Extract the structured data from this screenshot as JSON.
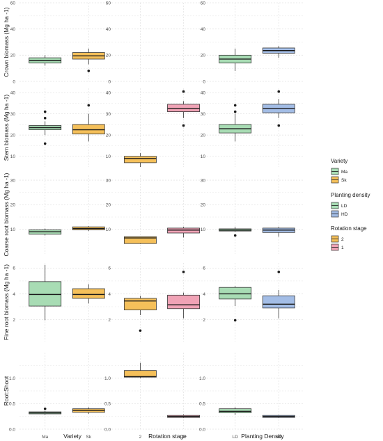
{
  "chart_data": {
    "type": "boxplot",
    "colors": {
      "Ma": "#a8dcb4",
      "Sk": "#f5c05a",
      "LD": "#a8dcb4",
      "HD": "#a3bde6",
      "2": "#f5c05a",
      "1": "#f0a3b6",
      "grid": "#e4e4e4",
      "median": "#1a1a1a"
    },
    "columns": [
      {
        "xlabel": "Variety",
        "categories": [
          "Ma",
          "Sk"
        ]
      },
      {
        "xlabel": "Rotation stage",
        "categories": [
          "2",
          "1"
        ]
      },
      {
        "xlabel": "Planting Density",
        "categories": [
          "LD",
          "HD"
        ]
      }
    ],
    "rows": [
      {
        "ylabel": "Crown biomass (Mg ha -1)",
        "ylim": [
          0,
          60
        ],
        "yticks": [
          0,
          20,
          40,
          60
        ],
        "tick_labels": [
          "0",
          "20",
          "40",
          "60"
        ]
      },
      {
        "ylabel": "Stem biomass (Mg ha -1)",
        "ylim": [
          5,
          42
        ],
        "yticks": [
          10,
          20,
          30,
          40
        ],
        "tick_labels": [
          "10",
          "20",
          "30",
          "40"
        ]
      },
      {
        "ylabel": "Coarse root biomass (Mg ha -1)",
        "ylim": [
          0,
          32
        ],
        "yticks": [
          10,
          20,
          30
        ],
        "tick_labels": [
          "10",
          "20",
          "30"
        ]
      },
      {
        "ylabel": "Fine root biomass (Mg ha -1)",
        "ylim": [
          0.3,
          6.4
        ],
        "yticks": [
          2,
          4,
          6
        ],
        "tick_labels": [
          "2",
          "4",
          "6"
        ]
      },
      {
        "ylabel": "Root:Shoot",
        "ylim": [
          0,
          1.5
        ],
        "yticks": [
          0,
          0.5,
          1.0
        ],
        "tick_labels": [
          "0.0",
          "0.5",
          "1.0"
        ]
      }
    ],
    "panels": [
      {
        "row": 0,
        "col": 0,
        "boxes": [
          {
            "cat": "Ma",
            "whisker_low": 12,
            "q1": 14,
            "median": 16,
            "q3": 18,
            "whisker_high": 20,
            "outliers": []
          },
          {
            "cat": "Sk",
            "whisker_low": 13,
            "q1": 17,
            "median": 19.5,
            "q3": 22,
            "whisker_high": 25,
            "outliers": [
              8
            ]
          }
        ]
      },
      {
        "row": 0,
        "col": 1,
        "boxes": []
      },
      {
        "row": 0,
        "col": 2,
        "boxes": [
          {
            "cat": "LD",
            "whisker_low": 8,
            "q1": 14,
            "median": 17,
            "q3": 20,
            "whisker_high": 25,
            "outliers": []
          },
          {
            "cat": "HD",
            "whisker_low": 18,
            "q1": 21.5,
            "median": 23.5,
            "q3": 25.5,
            "whisker_high": 27,
            "outliers": []
          }
        ]
      },
      {
        "row": 1,
        "col": 0,
        "boxes": [
          {
            "cat": "Ma",
            "whisker_low": 20,
            "q1": 22.5,
            "median": 23.5,
            "q3": 24.5,
            "whisker_high": 26.5,
            "outliers": [
              31,
              28,
              16
            ]
          },
          {
            "cat": "Sk",
            "whisker_low": 17,
            "q1": 20.5,
            "median": 22.5,
            "q3": 25,
            "whisker_high": 30,
            "outliers": [
              34
            ]
          }
        ]
      },
      {
        "row": 1,
        "col": 1,
        "boxes": [
          {
            "cat": "2",
            "whisker_low": 5,
            "q1": 7,
            "median": 9,
            "q3": 10,
            "whisker_high": 11.5,
            "outliers": []
          },
          {
            "cat": "1",
            "whisker_low": 28,
            "q1": 31,
            "median": 32.5,
            "q3": 34.5,
            "whisker_high": 36,
            "outliers": [
              40.5,
              24.5
            ]
          }
        ]
      },
      {
        "row": 1,
        "col": 2,
        "boxes": [
          {
            "cat": "LD",
            "whisker_low": 17,
            "q1": 21,
            "median": 23,
            "q3": 25,
            "whisker_high": 30,
            "outliers": [
              34,
              31
            ]
          },
          {
            "cat": "HD",
            "whisker_low": 28,
            "q1": 30.5,
            "median": 32.5,
            "q3": 34.5,
            "whisker_high": 37,
            "outliers": [
              40.5,
              24.5
            ]
          }
        ]
      },
      {
        "row": 2,
        "col": 0,
        "boxes": [
          {
            "cat": "Ma",
            "whisker_low": 7.5,
            "q1": 8,
            "median": 9,
            "q3": 9.8,
            "whisker_high": 10.3,
            "outliers": []
          },
          {
            "cat": "Sk",
            "whisker_low": 9.3,
            "q1": 9.8,
            "median": 10.3,
            "q3": 11,
            "whisker_high": 11.3,
            "outliers": []
          }
        ]
      },
      {
        "row": 2,
        "col": 1,
        "boxes": [
          {
            "cat": "2",
            "whisker_low": 4,
            "q1": 4.2,
            "median": 6.5,
            "q3": 7,
            "whisker_high": 7,
            "outliers": []
          },
          {
            "cat": "1",
            "whisker_low": 6.7,
            "q1": 8.5,
            "median": 9.7,
            "q3": 10.5,
            "whisker_high": 11,
            "outliers": []
          }
        ]
      },
      {
        "row": 2,
        "col": 2,
        "boxes": [
          {
            "cat": "LD",
            "whisker_low": 9,
            "q1": 9.3,
            "median": 9.7,
            "q3": 10.2,
            "whisker_high": 11,
            "outliers": [
              7.5
            ]
          },
          {
            "cat": "HD",
            "whisker_low": 7,
            "q1": 8.7,
            "median": 9.7,
            "q3": 10.5,
            "whisker_high": 11,
            "outliers": []
          }
        ]
      },
      {
        "row": 3,
        "col": 0,
        "boxes": [
          {
            "cat": "Ma",
            "whisker_low": 1.95,
            "q1": 3.05,
            "median": 3.95,
            "q3": 4.95,
            "whisker_high": 6.25,
            "outliers": []
          },
          {
            "cat": "Sk",
            "whisker_low": 3.25,
            "q1": 3.65,
            "median": 3.95,
            "q3": 4.4,
            "whisker_high": 4.75,
            "outliers": []
          }
        ]
      },
      {
        "row": 3,
        "col": 1,
        "boxes": [
          {
            "cat": "2",
            "whisker_low": 2.35,
            "q1": 2.75,
            "median": 3.45,
            "q3": 3.65,
            "whisker_high": 3.85,
            "outliers": [
              1.15
            ]
          },
          {
            "cat": "1",
            "whisker_low": 2.1,
            "q1": 2.85,
            "median": 3.15,
            "q3": 3.9,
            "whisker_high": 4.1,
            "outliers": [
              5.7
            ]
          }
        ]
      },
      {
        "row": 3,
        "col": 2,
        "boxes": [
          {
            "cat": "LD",
            "whisker_low": 3.05,
            "q1": 3.6,
            "median": 4.0,
            "q3": 4.5,
            "whisker_high": 4.6,
            "outliers": [
              1.95
            ]
          },
          {
            "cat": "HD",
            "whisker_low": 2.1,
            "q1": 2.9,
            "median": 3.2,
            "q3": 3.85,
            "whisker_high": 4.3,
            "outliers": [
              5.7
            ]
          }
        ]
      },
      {
        "row": 4,
        "col": 0,
        "boxes": [
          {
            "cat": "Ma",
            "whisker_low": 0.28,
            "q1": 0.3,
            "median": 0.32,
            "q3": 0.34,
            "whisker_high": 0.36,
            "outliers": [
              0.4
            ]
          },
          {
            "cat": "Sk",
            "whisker_low": 0.3,
            "q1": 0.33,
            "median": 0.37,
            "q3": 0.4,
            "whisker_high": 0.43,
            "outliers": []
          }
        ]
      },
      {
        "row": 4,
        "col": 1,
        "boxes": [
          {
            "cat": "2",
            "whisker_low": 1.0,
            "q1": 1.02,
            "median": 1.03,
            "q3": 1.15,
            "whisker_high": 1.3,
            "outliers": []
          },
          {
            "cat": "1",
            "whisker_low": 0.22,
            "q1": 0.23,
            "median": 0.25,
            "q3": 0.27,
            "whisker_high": 0.29,
            "outliers": []
          }
        ]
      },
      {
        "row": 4,
        "col": 2,
        "boxes": [
          {
            "cat": "LD",
            "whisker_low": 0.28,
            "q1": 0.32,
            "median": 0.35,
            "q3": 0.4,
            "whisker_high": 0.43,
            "outliers": []
          },
          {
            "cat": "HD",
            "whisker_low": 0.22,
            "q1": 0.23,
            "median": 0.25,
            "q3": 0.27,
            "whisker_high": 0.28,
            "outliers": []
          }
        ]
      }
    ],
    "legend": {
      "placement": "right",
      "groups": [
        {
          "title": "Variety",
          "entries": [
            {
              "label": "Ma",
              "color_key": "Ma"
            },
            {
              "label": "Sk",
              "color_key": "Sk"
            }
          ]
        },
        {
          "title": "Planting density",
          "entries": [
            {
              "label": "LD",
              "color_key": "LD"
            },
            {
              "label": "HD",
              "color_key": "HD"
            }
          ]
        },
        {
          "title": "Rotation stage",
          "entries": [
            {
              "label": "2",
              "color_key": "2"
            },
            {
              "label": "1",
              "color_key": "1"
            }
          ]
        }
      ]
    }
  }
}
